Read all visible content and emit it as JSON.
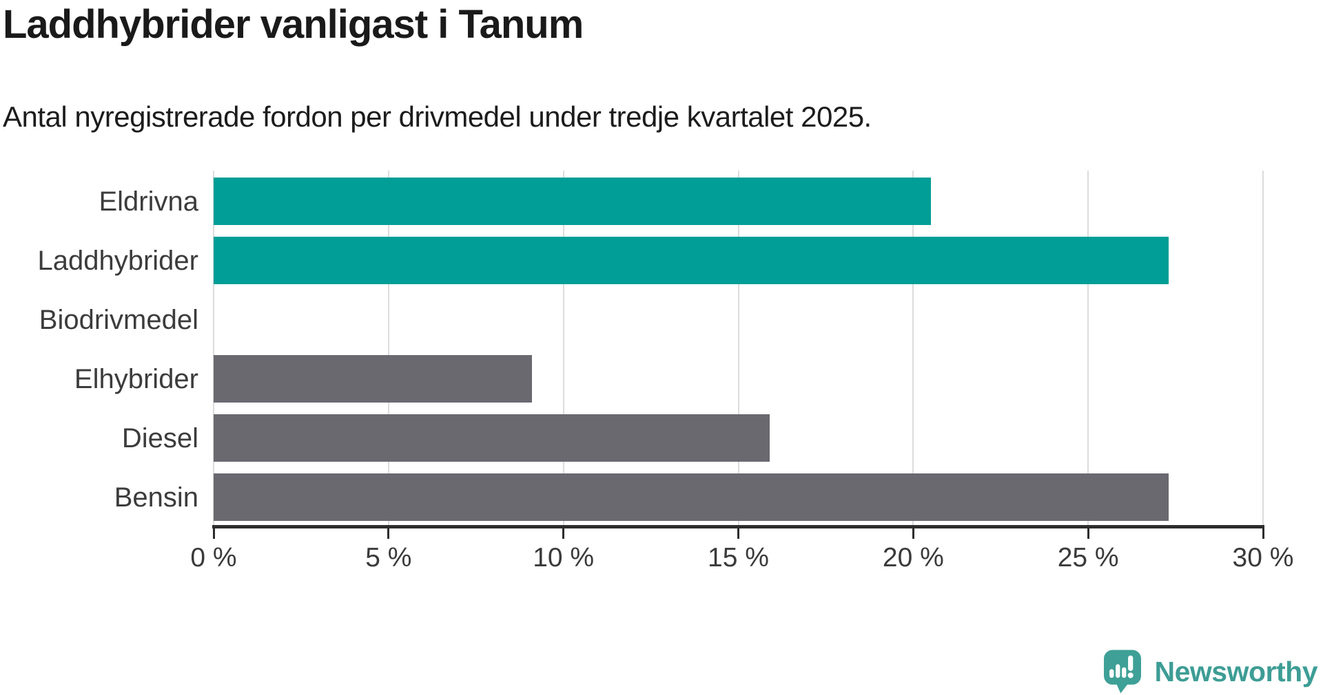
{
  "header": {
    "title": "Laddhybrider vanligast i Tanum",
    "subtitle": "Antal nyregistrerade fordon per drivmedel under tredje kvartalet 2025."
  },
  "chart_data": {
    "type": "bar",
    "orientation": "horizontal",
    "title": "Laddhybrider vanligast i Tanum",
    "subtitle": "Antal nyregistrerade fordon per drivmedel under tredje kvartalet 2025.",
    "categories": [
      "Eldrivna",
      "Laddhybrider",
      "Biodrivmedel",
      "Elhybrider",
      "Diesel",
      "Bensin"
    ],
    "values": [
      20.5,
      27.3,
      0,
      9.1,
      15.9,
      27.3
    ],
    "unit": "%",
    "bar_colors": [
      "#009e96",
      "#009e96",
      "#6a6970",
      "#6a6970",
      "#6a6970",
      "#6a6970"
    ],
    "xlim": [
      0,
      30
    ],
    "x_ticks": [
      0,
      5,
      10,
      15,
      20,
      25,
      30
    ],
    "x_tick_labels": [
      "0 %",
      "5 %",
      "10 %",
      "15 %",
      "20 %",
      "25 %",
      "30 %"
    ],
    "grid": true,
    "legend": "none"
  },
  "colors": {
    "highlight_bar": "#009e96",
    "default_bar": "#6a6970",
    "gridline": "#dcdcdc",
    "axis": "#2d2d2d",
    "text": "#1a1a1a",
    "label": "#3c3c3c",
    "brand_teal": "#3ea096"
  },
  "footer": {
    "brand": "Newsworthy",
    "logo_icon": "newsworthy-speech-bubble-chart-icon"
  }
}
